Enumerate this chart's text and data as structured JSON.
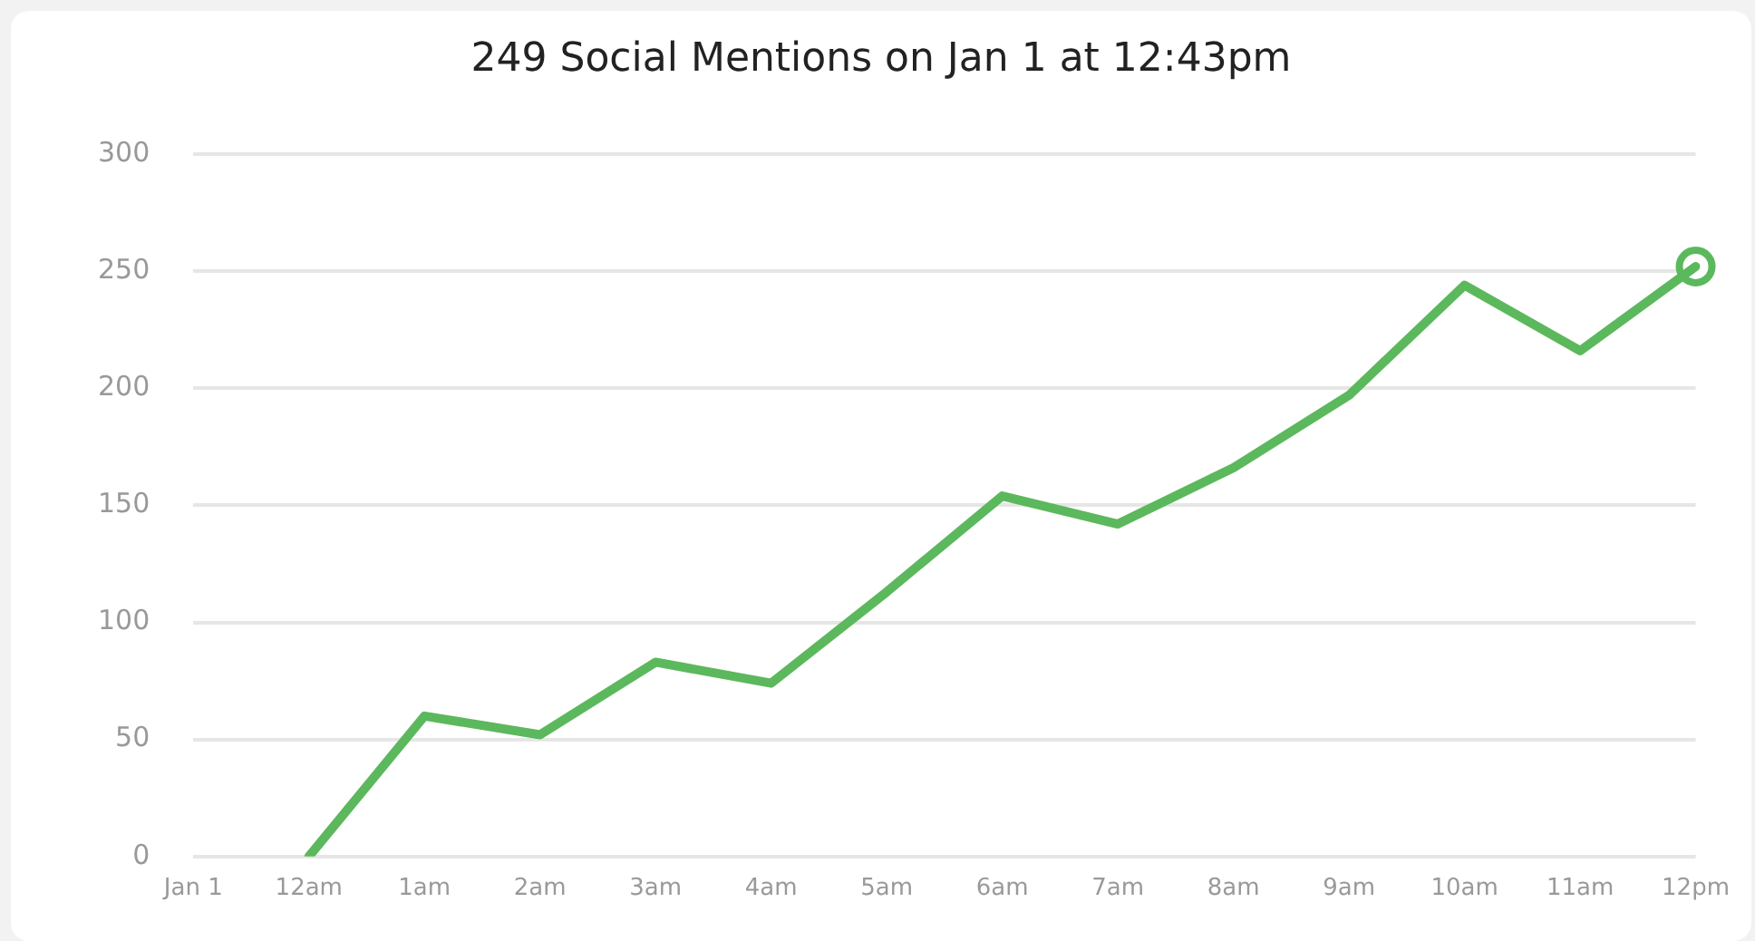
{
  "chart_data": {
    "type": "line",
    "title": "249 Social Mentions on Jan 1 at 12:43pm",
    "categories": [
      "Jan 1",
      "12am",
      "1am",
      "2am",
      "3am",
      "4am",
      "5am",
      "6am",
      "7am",
      "8am",
      "9am",
      "10am",
      "11am",
      "12pm"
    ],
    "series": [
      {
        "color": "#5cb85c",
        "values": [
          null,
          0,
          60,
          52,
          83,
          74,
          113,
          154,
          142,
          166,
          197,
          244,
          216,
          252
        ],
        "marker": "none"
      },
      {
        "type": "scatter",
        "color": "#5cb85c",
        "x": [
          "12pm"
        ],
        "values": [
          252
        ],
        "marker": "circle"
      }
    ],
    "ylim": [
      0,
      300
    ],
    "yticks": [
      0,
      50,
      100,
      150,
      200,
      250,
      300
    ],
    "grid": "y",
    "legend": false
  }
}
